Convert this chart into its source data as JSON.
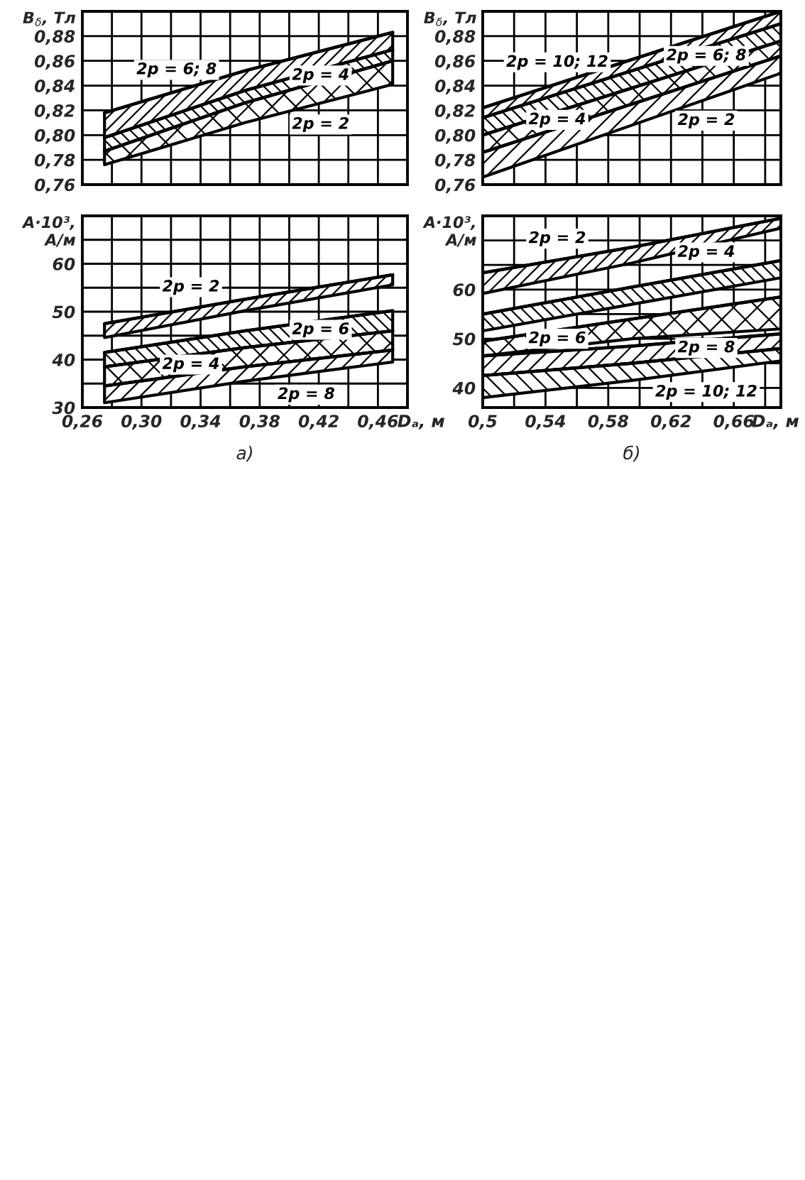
{
  "chart_data": [
    {
      "type": "line",
      "ylabel": "B$_{δ}$, Тл",
      "xlim": [
        0.26,
        0.48
      ],
      "ylim": [
        0.76,
        0.9
      ],
      "xticks": [
        0.26,
        0.28,
        0.3,
        0.32,
        0.34,
        0.36,
        0.38,
        0.4,
        0.42,
        0.44,
        0.46,
        0.48
      ],
      "yticks": [
        {
          "value": 0.76,
          "label": "0,76"
        },
        {
          "value": 0.78,
          "label": "0,78"
        },
        {
          "value": 0.8,
          "label": "0,80"
        },
        {
          "value": 0.82,
          "label": "0,82"
        },
        {
          "value": 0.84,
          "label": "0,84"
        },
        {
          "value": 0.86,
          "label": "0,86"
        },
        {
          "value": 0.88,
          "label": "0,88"
        }
      ],
      "tick_labels": "y",
      "grid": true,
      "x": [
        0.275,
        0.37,
        0.47
      ],
      "series": [
        {
          "name": "2p = 6; 8",
          "color": "#000000",
          "values": [
            0.818,
            0.852,
            0.883
          ],
          "lower": [
            0.798,
            0.836,
            0.869
          ],
          "upper": [
            0.818,
            0.852,
            0.883
          ]
        },
        {
          "name": "2p = 4",
          "color": "#000000",
          "values": [
            0.798,
            0.836,
            0.869
          ],
          "lower": [
            0.787,
            0.826,
            0.86
          ],
          "upper": [
            0.798,
            0.836,
            0.869
          ]
        },
        {
          "name": "2p = 2",
          "color": "#000000",
          "values": [
            0.787,
            0.826,
            0.86
          ],
          "lower": [
            0.776,
            0.81,
            0.841
          ],
          "upper": [
            0.787,
            0.826,
            0.86
          ]
        }
      ]
    },
    {
      "type": "line",
      "ylabel": "B$_{δ}$, Тл",
      "xlim": [
        0.5,
        0.69
      ],
      "ylim": [
        0.76,
        0.9
      ],
      "xticks": [
        0.5,
        0.52,
        0.54,
        0.56,
        0.58,
        0.6,
        0.62,
        0.64,
        0.66,
        0.68
      ],
      "yticks": [
        {
          "value": 0.76,
          "label": "0,76"
        },
        {
          "value": 0.78,
          "label": "0,78"
        },
        {
          "value": 0.8,
          "label": "0,80"
        },
        {
          "value": 0.82,
          "label": "0,82"
        },
        {
          "value": 0.84,
          "label": "0,84"
        },
        {
          "value": 0.86,
          "label": "0,86"
        },
        {
          "value": 0.88,
          "label": "0,88"
        }
      ],
      "tick_labels": "y",
      "grid": true,
      "x": [
        0.5,
        0.595,
        0.69
      ],
      "series": [
        {
          "name": "2p = 10; 12",
          "color": "#000000",
          "values": [
            0.822,
            0.861,
            0.9
          ],
          "lower": [
            0.814,
            0.852,
            0.89
          ],
          "upper": [
            0.822,
            0.861,
            0.9
          ]
        },
        {
          "name": "2p = 6; 8",
          "color": "#000000",
          "values": [
            0.814,
            0.852,
            0.89
          ],
          "lower": [
            0.8,
            0.838,
            0.876
          ],
          "upper": [
            0.814,
            0.852,
            0.89
          ]
        },
        {
          "name": "2p = 4",
          "color": "#000000",
          "values": [
            0.8,
            0.838,
            0.876
          ],
          "lower": [
            0.786,
            0.825,
            0.864
          ],
          "upper": [
            0.8,
            0.838,
            0.876
          ]
        },
        {
          "name": "2p = 2",
          "color": "#000000",
          "values": [
            0.786,
            0.825,
            0.864
          ],
          "lower": [
            0.766,
            0.808,
            0.85
          ],
          "upper": [
            0.786,
            0.825,
            0.864
          ]
        }
      ]
    },
    {
      "type": "line",
      "ylabel": "A·10³,\nA/м",
      "xlabel": "Dₐ, м",
      "annotations": [
        "а)"
      ],
      "xlim": [
        0.26,
        0.48
      ],
      "ylim": [
        30,
        70
      ],
      "xticks": [
        {
          "value": 0.26,
          "label": "0,26"
        },
        {
          "value": 0.28,
          "label": null
        },
        {
          "value": 0.3,
          "label": "0,30"
        },
        {
          "value": 0.32,
          "label": null
        },
        {
          "value": 0.34,
          "label": "0,34"
        },
        {
          "value": 0.36,
          "label": null
        },
        {
          "value": 0.38,
          "label": "0,38"
        },
        {
          "value": 0.4,
          "label": null
        },
        {
          "value": 0.42,
          "label": "0,42"
        },
        {
          "value": 0.44,
          "label": null
        },
        {
          "value": 0.46,
          "label": "0,46"
        },
        {
          "value": 0.48,
          "label": null
        }
      ],
      "yticks": [
        30,
        {
          "value": 35,
          "label": null
        },
        40,
        {
          "value": 45,
          "label": null
        },
        50,
        {
          "value": 55,
          "label": null
        },
        60,
        {
          "value": 65,
          "label": null
        }
      ],
      "grid": true,
      "x": [
        0.275,
        0.37,
        0.47
      ],
      "series": [
        {
          "name": "2p = 2",
          "color": "#000000",
          "values": [
            47.5,
            52.6,
            57.7
          ],
          "lower": [
            44.6,
            50.2,
            55.6
          ],
          "upper": [
            47.5,
            52.6,
            57.7
          ]
        },
        {
          "name": "2p = 6",
          "color": "#000000",
          "values": [
            41.5,
            46,
            50.2
          ],
          "lower": [
            38.5,
            42.5,
            46
          ],
          "upper": [
            41.5,
            46,
            50.2
          ]
        },
        {
          "name": "2p = 4",
          "color": "#000000",
          "values": [
            38.5,
            42.5,
            46
          ],
          "lower": [
            34.5,
            38.5,
            42
          ],
          "upper": [
            38.5,
            42.5,
            46
          ]
        },
        {
          "name": "2p = 8",
          "color": "#000000",
          "values": [
            34.5,
            38.5,
            42
          ],
          "lower": [
            31,
            35.5,
            39.5
          ],
          "upper": [
            34.5,
            38.5,
            42
          ]
        }
      ]
    },
    {
      "type": "line",
      "ylabel": "A·10³,\nA/м",
      "xlabel": "Dₐ, м",
      "annotations": [
        "б)"
      ],
      "xlim": [
        0.5,
        0.69
      ],
      "ylim": [
        36,
        75
      ],
      "xticks": [
        {
          "value": 0.5,
          "label": "0,5"
        },
        {
          "value": 0.52,
          "label": null
        },
        {
          "value": 0.54,
          "label": "0,54"
        },
        {
          "value": 0.56,
          "label": null
        },
        {
          "value": 0.58,
          "label": "0,58"
        },
        {
          "value": 0.6,
          "label": null
        },
        {
          "value": 0.62,
          "label": "0,62"
        },
        {
          "value": 0.64,
          "label": null
        },
        {
          "value": 0.66,
          "label": "0,66"
        },
        {
          "value": 0.68,
          "label": null
        }
      ],
      "yticks": [
        40,
        {
          "value": 45,
          "label": null
        },
        50,
        {
          "value": 55,
          "label": null
        },
        60,
        {
          "value": 65,
          "label": null
        },
        {
          "value": 70,
          "label": null
        }
      ],
      "grid": true,
      "x": [
        0.5,
        0.595,
        0.69
      ],
      "series": [
        {
          "name": "2p = 2",
          "color": "#000000",
          "values": [
            63.4,
            68.6,
            74.5
          ],
          "lower": [
            59.2,
            65.4,
            72.5
          ],
          "upper": [
            63.4,
            68.6,
            74.5
          ]
        },
        {
          "name": "2p = 4",
          "color": "#000000",
          "values": [
            55,
            60.5,
            65.9
          ],
          "lower": [
            51.6,
            57,
            62.4
          ],
          "upper": [
            55,
            60.5,
            65.9
          ]
        },
        {
          "name": "2p = 6",
          "color": "#000000",
          "values": [
            49.5,
            54,
            58.5
          ],
          "lower": [
            46.5,
            50,
            52
          ],
          "upper": [
            49.5,
            54,
            58.5
          ]
        },
        {
          "name": "2p = 8",
          "color": "#000000",
          "values": [
            46.5,
            48.5,
            51
          ],
          "lower": [
            42.5,
            45,
            48
          ],
          "upper": [
            46.5,
            48.5,
            51
          ]
        },
        {
          "name": "2p = 10; 12",
          "color": "#000000",
          "values": [
            42.5,
            45,
            48
          ],
          "lower": [
            38,
            41.5,
            45.5
          ],
          "upper": [
            42.5,
            45,
            48
          ]
        }
      ]
    }
  ]
}
